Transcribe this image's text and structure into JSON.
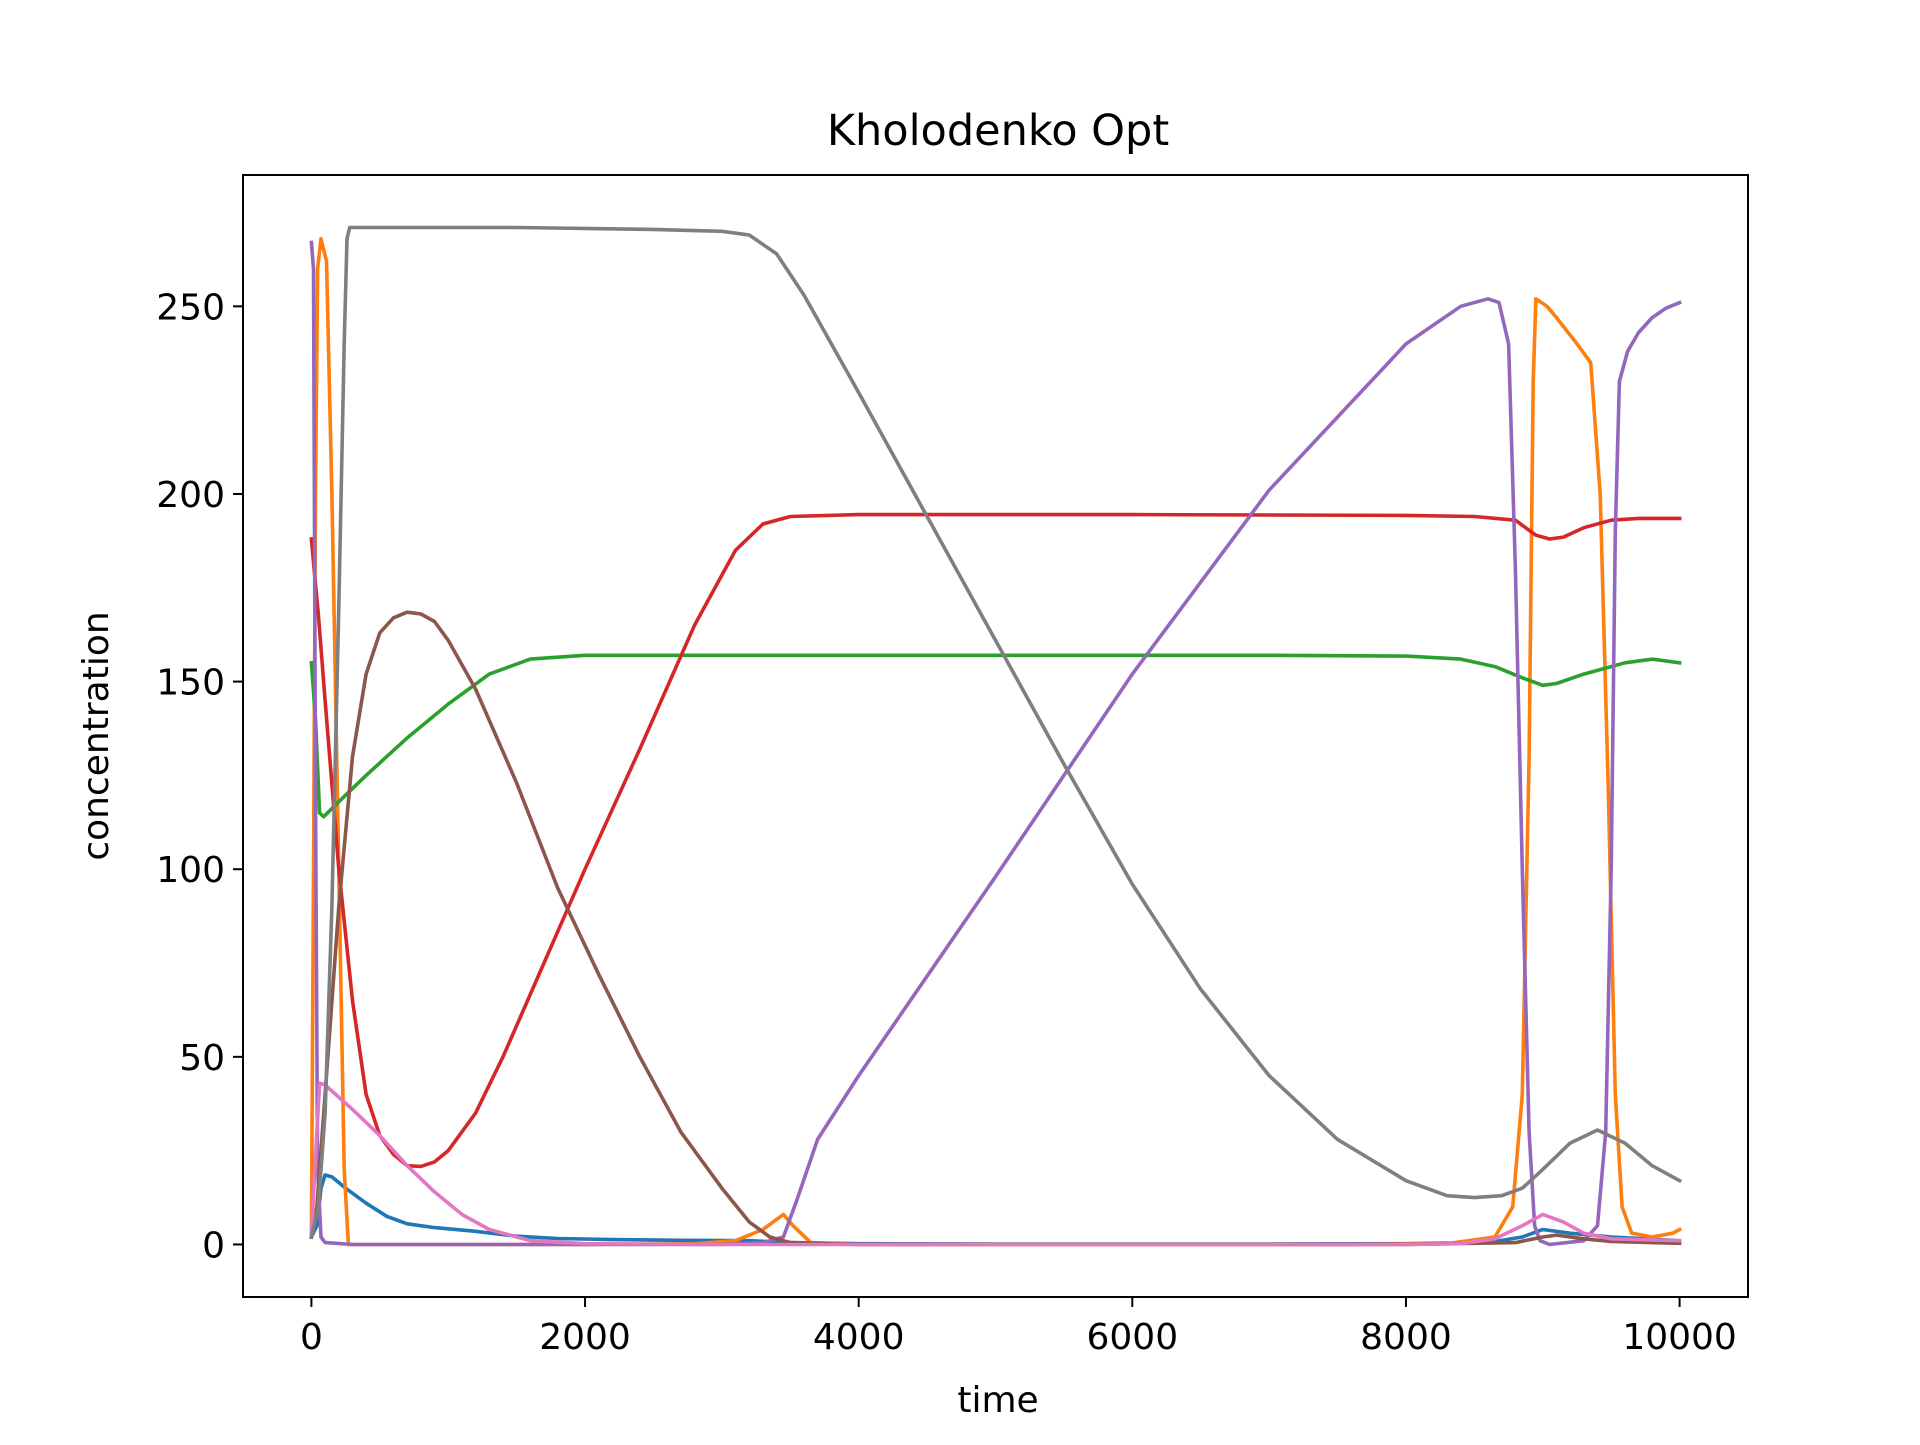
{
  "chart_data": {
    "type": "line",
    "title": "Kholodenko Opt",
    "xlabel": "time",
    "ylabel": "concentration",
    "xlim": [
      -500,
      10500
    ],
    "ylim": [
      -14,
      285
    ],
    "xticks": [
      0,
      2000,
      4000,
      6000,
      8000,
      10000
    ],
    "yticks": [
      0,
      50,
      100,
      150,
      200,
      250
    ],
    "grid": false,
    "legend": "none",
    "series": [
      {
        "color": "#1f77b4",
        "points": [
          [
            0,
            2
          ],
          [
            40,
            5
          ],
          [
            70,
            15
          ],
          [
            100,
            18.5
          ],
          [
            150,
            18
          ],
          [
            250,
            15
          ],
          [
            400,
            11
          ],
          [
            550,
            7.5
          ],
          [
            700,
            5.5
          ],
          [
            900,
            4.5
          ],
          [
            1200,
            3.5
          ],
          [
            1500,
            2.2
          ],
          [
            1800,
            1.6
          ],
          [
            2200,
            1.3
          ],
          [
            2700,
            1.1
          ],
          [
            3200,
            1
          ],
          [
            3500,
            0.5
          ],
          [
            4000,
            0.2
          ],
          [
            5000,
            0.1
          ],
          [
            6000,
            0.1
          ],
          [
            7000,
            0.1
          ],
          [
            8000,
            0.2
          ],
          [
            8600,
            0.5
          ],
          [
            8850,
            2
          ],
          [
            9000,
            4
          ],
          [
            9200,
            3
          ],
          [
            9500,
            2
          ],
          [
            10000,
            1
          ]
        ]
      },
      {
        "color": "#ff7f0e",
        "points": [
          [
            0,
            2
          ],
          [
            15,
            100
          ],
          [
            30,
            200
          ],
          [
            45,
            260
          ],
          [
            70,
            268
          ],
          [
            110,
            262
          ],
          [
            150,
            200
          ],
          [
            200,
            100
          ],
          [
            240,
            20
          ],
          [
            270,
            0
          ],
          [
            400,
            0
          ],
          [
            1000,
            0
          ],
          [
            2000,
            0
          ],
          [
            2800,
            0.2
          ],
          [
            3100,
            1
          ],
          [
            3300,
            4
          ],
          [
            3450,
            8
          ],
          [
            3520,
            5
          ],
          [
            3650,
            0.5
          ],
          [
            4000,
            0
          ],
          [
            6000,
            0
          ],
          [
            7500,
            0
          ],
          [
            8300,
            0.2
          ],
          [
            8650,
            2
          ],
          [
            8780,
            10
          ],
          [
            8850,
            40
          ],
          [
            8900,
            130
          ],
          [
            8930,
            230
          ],
          [
            8950,
            252
          ],
          [
            9030,
            250
          ],
          [
            9100,
            247
          ],
          [
            9250,
            240
          ],
          [
            9350,
            235
          ],
          [
            9420,
            200
          ],
          [
            9480,
            120
          ],
          [
            9530,
            40
          ],
          [
            9580,
            10
          ],
          [
            9650,
            3
          ],
          [
            9800,
            2
          ],
          [
            9950,
            3
          ],
          [
            10000,
            4
          ]
        ]
      },
      {
        "color": "#2ca02c",
        "points": [
          [
            0,
            155
          ],
          [
            30,
            140
          ],
          [
            60,
            115
          ],
          [
            90,
            114
          ],
          [
            200,
            118
          ],
          [
            400,
            125
          ],
          [
            700,
            135
          ],
          [
            1000,
            144
          ],
          [
            1300,
            152
          ],
          [
            1600,
            156
          ],
          [
            2000,
            157
          ],
          [
            4000,
            157
          ],
          [
            6000,
            157
          ],
          [
            7000,
            157
          ],
          [
            8000,
            156.8
          ],
          [
            8400,
            156
          ],
          [
            8650,
            154
          ],
          [
            8850,
            151
          ],
          [
            9000,
            149
          ],
          [
            9100,
            149.5
          ],
          [
            9300,
            152
          ],
          [
            9600,
            155
          ],
          [
            9800,
            156
          ],
          [
            10000,
            155
          ]
        ]
      },
      {
        "color": "#d62728",
        "points": [
          [
            0,
            188
          ],
          [
            20,
            180
          ],
          [
            50,
            168
          ],
          [
            100,
            145
          ],
          [
            200,
            100
          ],
          [
            300,
            65
          ],
          [
            400,
            40
          ],
          [
            500,
            29
          ],
          [
            600,
            24
          ],
          [
            700,
            21
          ],
          [
            800,
            20.8
          ],
          [
            900,
            22
          ],
          [
            1000,
            25
          ],
          [
            1200,
            35
          ],
          [
            1400,
            50
          ],
          [
            1700,
            75
          ],
          [
            2000,
            100
          ],
          [
            2400,
            132
          ],
          [
            2800,
            165
          ],
          [
            3100,
            185
          ],
          [
            3300,
            192
          ],
          [
            3500,
            194
          ],
          [
            4000,
            194.5
          ],
          [
            6000,
            194.5
          ],
          [
            8000,
            194.3
          ],
          [
            8500,
            194
          ],
          [
            8800,
            193
          ],
          [
            8950,
            189
          ],
          [
            9050,
            188
          ],
          [
            9150,
            188.5
          ],
          [
            9300,
            191
          ],
          [
            9500,
            193
          ],
          [
            9700,
            193.5
          ],
          [
            10000,
            193.5
          ]
        ]
      },
      {
        "color": "#9467bd",
        "points": [
          [
            0,
            267
          ],
          [
            15,
            260
          ],
          [
            30,
            120
          ],
          [
            45,
            20
          ],
          [
            70,
            2
          ],
          [
            100,
            0.5
          ],
          [
            300,
            0
          ],
          [
            1000,
            0
          ],
          [
            2000,
            0
          ],
          [
            3000,
            0
          ],
          [
            3300,
            0.5
          ],
          [
            3450,
            2
          ],
          [
            3550,
            12
          ],
          [
            3700,
            28
          ],
          [
            4000,
            45
          ],
          [
            5000,
            98
          ],
          [
            6000,
            152
          ],
          [
            7000,
            201
          ],
          [
            8000,
            240
          ],
          [
            8400,
            250
          ],
          [
            8600,
            252
          ],
          [
            8680,
            251
          ],
          [
            8750,
            240
          ],
          [
            8800,
            180
          ],
          [
            8850,
            100
          ],
          [
            8900,
            30
          ],
          [
            8940,
            5
          ],
          [
            8980,
            1
          ],
          [
            9050,
            0
          ],
          [
            9300,
            1
          ],
          [
            9400,
            5
          ],
          [
            9460,
            30
          ],
          [
            9500,
            100
          ],
          [
            9530,
            190
          ],
          [
            9560,
            230
          ],
          [
            9620,
            238
          ],
          [
            9700,
            243
          ],
          [
            9800,
            247
          ],
          [
            9900,
            249.5
          ],
          [
            10000,
            251
          ]
        ]
      },
      {
        "color": "#8c564b",
        "points": [
          [
            0,
            2
          ],
          [
            40,
            10
          ],
          [
            100,
            40
          ],
          [
            200,
            90
          ],
          [
            300,
            130
          ],
          [
            400,
            152
          ],
          [
            500,
            163
          ],
          [
            600,
            167
          ],
          [
            700,
            168.5
          ],
          [
            800,
            168
          ],
          [
            900,
            166
          ],
          [
            1000,
            161
          ],
          [
            1200,
            148
          ],
          [
            1500,
            123
          ],
          [
            1800,
            95
          ],
          [
            2100,
            72
          ],
          [
            2400,
            50
          ],
          [
            2700,
            30
          ],
          [
            3000,
            15
          ],
          [
            3200,
            6
          ],
          [
            3350,
            2
          ],
          [
            3500,
            0.5
          ],
          [
            4000,
            0
          ],
          [
            6000,
            0
          ],
          [
            8000,
            0
          ],
          [
            8800,
            0.5
          ],
          [
            9000,
            2
          ],
          [
            9100,
            2.5
          ],
          [
            9300,
            1.5
          ],
          [
            9500,
            0.8
          ],
          [
            10000,
            0.3
          ]
        ]
      },
      {
        "color": "#e377c2",
        "points": [
          [
            0,
            2
          ],
          [
            25,
            20
          ],
          [
            60,
            43
          ],
          [
            100,
            42.5
          ],
          [
            300,
            36
          ],
          [
            500,
            29
          ],
          [
            700,
            21
          ],
          [
            900,
            14
          ],
          [
            1100,
            8
          ],
          [
            1300,
            4
          ],
          [
            1600,
            1
          ],
          [
            2000,
            0.2
          ],
          [
            3000,
            0
          ],
          [
            6000,
            0
          ],
          [
            8000,
            0
          ],
          [
            8400,
            0.2
          ],
          [
            8650,
            1.5
          ],
          [
            8850,
            5
          ],
          [
            9000,
            8
          ],
          [
            9150,
            6
          ],
          [
            9300,
            3
          ],
          [
            9500,
            1.5
          ],
          [
            10000,
            1
          ]
        ]
      },
      {
        "color": "#7f7f7f",
        "points": [
          [
            0,
            2
          ],
          [
            50,
            10
          ],
          [
            100,
            35
          ],
          [
            150,
            90
          ],
          [
            200,
            170
          ],
          [
            240,
            240
          ],
          [
            260,
            268
          ],
          [
            280,
            271
          ],
          [
            500,
            271
          ],
          [
            1500,
            271
          ],
          [
            2500,
            270.5
          ],
          [
            3000,
            270
          ],
          [
            3200,
            269
          ],
          [
            3400,
            264
          ],
          [
            3600,
            253
          ],
          [
            4000,
            227
          ],
          [
            4500,
            194
          ],
          [
            5000,
            161
          ],
          [
            5500,
            128
          ],
          [
            6000,
            96
          ],
          [
            6500,
            68
          ],
          [
            7000,
            45
          ],
          [
            7500,
            28
          ],
          [
            8000,
            17
          ],
          [
            8300,
            13
          ],
          [
            8500,
            12.5
          ],
          [
            8700,
            13
          ],
          [
            8850,
            15
          ],
          [
            9000,
            20
          ],
          [
            9200,
            27
          ],
          [
            9400,
            30.5
          ],
          [
            9600,
            27
          ],
          [
            9800,
            21
          ],
          [
            10000,
            17
          ]
        ]
      }
    ]
  }
}
